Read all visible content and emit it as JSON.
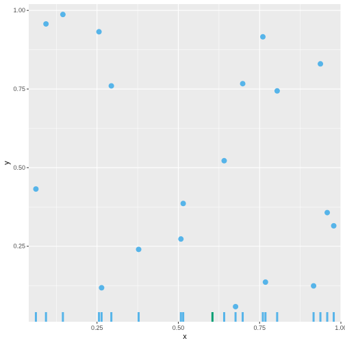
{
  "chart_data": {
    "type": "scatter",
    "title": "",
    "xlabel": "x",
    "ylabel": "y",
    "xlim": [
      0.04,
      1.0
    ],
    "ylim": [
      0.01,
      1.02
    ],
    "x_ticks": [
      0.25,
      0.5,
      0.75,
      1.0
    ],
    "x_tick_labels": [
      "0.25",
      "0.50",
      "0.75",
      "1.00"
    ],
    "y_ticks": [
      0.25,
      0.5,
      0.75,
      1.0
    ],
    "y_tick_labels": [
      "0.25",
      "0.50",
      "0.75",
      "1.00"
    ],
    "grid": true,
    "panel_background": "#ebebeb",
    "gridline_color": "#ffffff",
    "point_color": "#56b4e9",
    "rug_color": "#56b4e9",
    "rug_highlight_color": "#009e73",
    "rug_highlight_x": 0.605,
    "points": [
      {
        "x": 0.062,
        "y": 0.432
      },
      {
        "x": 0.093,
        "y": 0.957
      },
      {
        "x": 0.145,
        "y": 0.987
      },
      {
        "x": 0.256,
        "y": 0.932
      },
      {
        "x": 0.264,
        "y": 0.118
      },
      {
        "x": 0.294,
        "y": 0.76
      },
      {
        "x": 0.378,
        "y": 0.24
      },
      {
        "x": 0.508,
        "y": 0.273
      },
      {
        "x": 0.515,
        "y": 0.386
      },
      {
        "x": 0.641,
        "y": 0.522
      },
      {
        "x": 0.676,
        "y": 0.058
      },
      {
        "x": 0.698,
        "y": 0.767
      },
      {
        "x": 0.76,
        "y": 0.916
      },
      {
        "x": 0.768,
        "y": 0.136
      },
      {
        "x": 0.804,
        "y": 0.744
      },
      {
        "x": 0.916,
        "y": 0.124
      },
      {
        "x": 0.937,
        "y": 0.83
      },
      {
        "x": 0.958,
        "y": 0.357
      },
      {
        "x": 0.978,
        "y": 0.315
      }
    ]
  }
}
